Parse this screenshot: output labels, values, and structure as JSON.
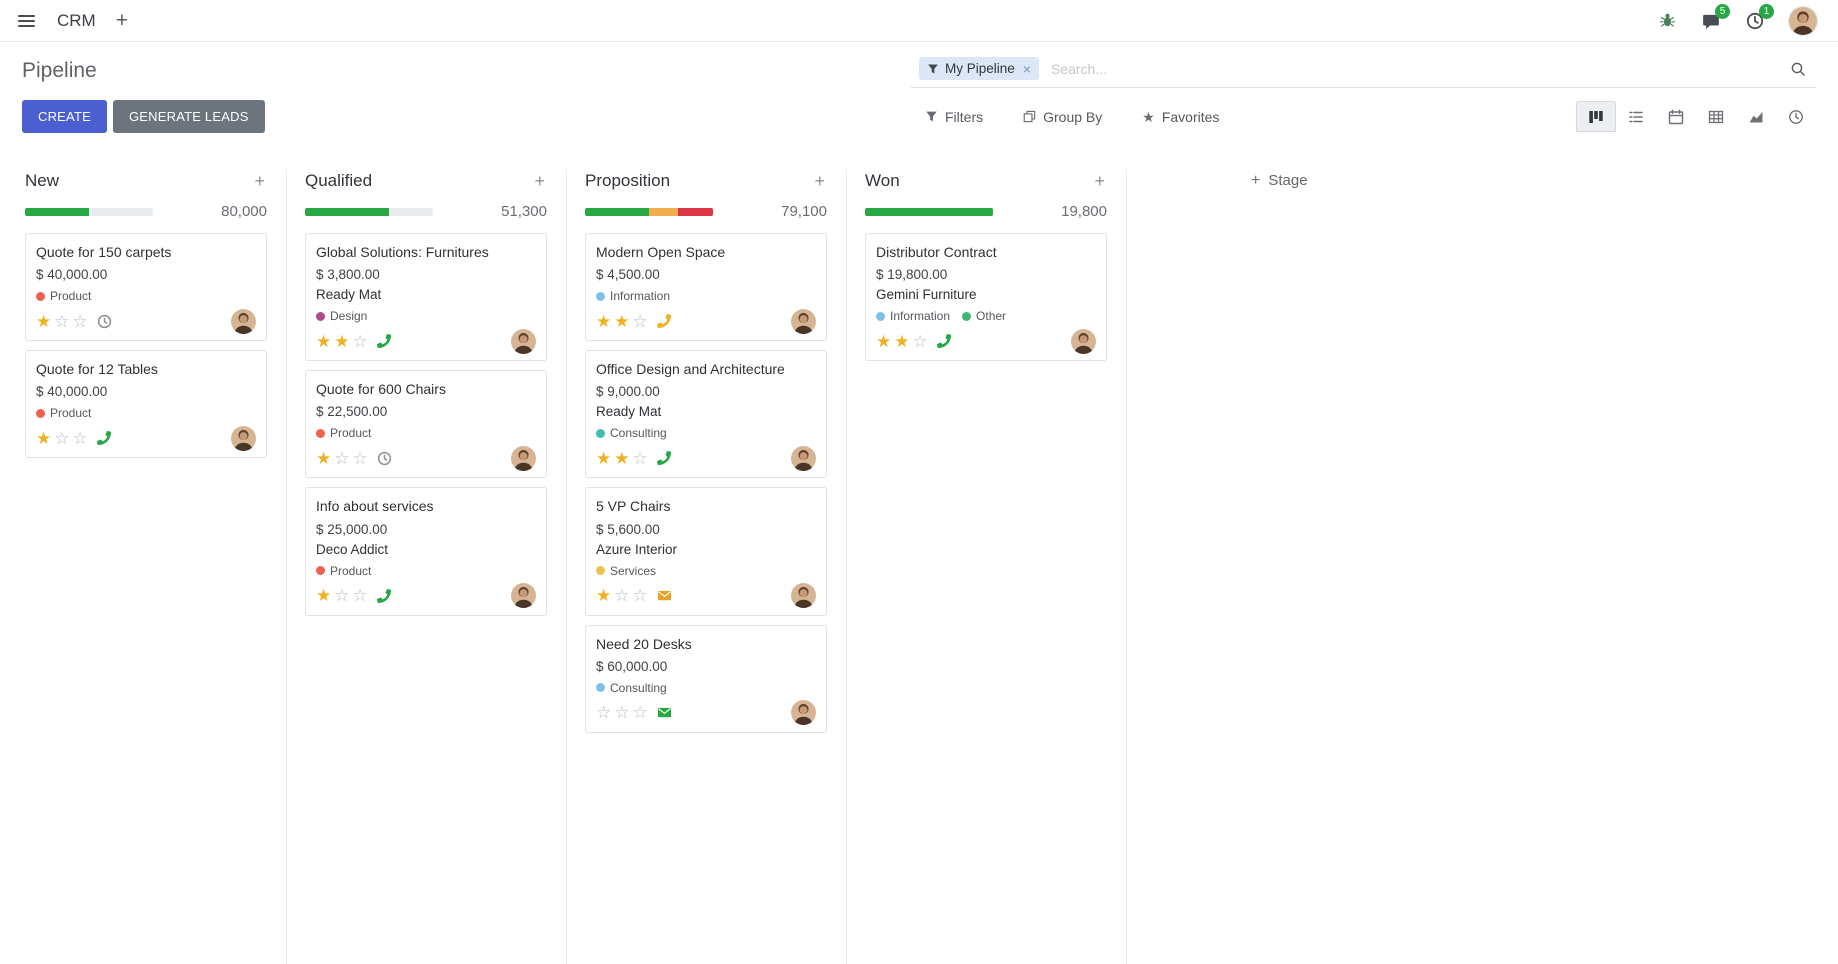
{
  "theme": {
    "accent": "#4b5fd0",
    "secondary": "#6c757d",
    "success": "#28a745"
  },
  "navbar": {
    "app_name": "CRM",
    "badges": {
      "messages": "5",
      "activities": "1"
    }
  },
  "control_panel": {
    "breadcrumb": "Pipeline",
    "create_label": "CREATE",
    "generate_leads_label": "GENERATE LEADS",
    "search": {
      "facet_label": "My Pipeline",
      "placeholder": "Search..."
    },
    "filter_buttons": {
      "filters": "Filters",
      "group_by": "Group By",
      "favorites": "Favorites"
    },
    "view_switcher": {
      "active": "kanban",
      "views": [
        "kanban",
        "list",
        "calendar",
        "pivot",
        "graph",
        "activity"
      ]
    }
  },
  "board": {
    "add_stage_label": "Stage",
    "columns": [
      {
        "name": "New",
        "total": "80,000",
        "progress": [
          {
            "color": "#28a745",
            "percent": 50
          }
        ],
        "cards": [
          {
            "title": "Quote for 150 carpets",
            "amount": "$ 40,000.00",
            "tags": [
              {
                "label": "Product",
                "color": "#f06050"
              }
            ],
            "stars": 1,
            "activity": {
              "icon": "clock",
              "color": "#8b9095"
            }
          },
          {
            "title": "Quote for 12 Tables",
            "amount": "$ 40,000.00",
            "tags": [
              {
                "label": "Product",
                "color": "#f06050"
              }
            ],
            "stars": 1,
            "activity": {
              "icon": "phone",
              "color": "#28a745"
            }
          }
        ]
      },
      {
        "name": "Qualified",
        "total": "51,300",
        "progress": [
          {
            "color": "#28a745",
            "percent": 66
          }
        ],
        "cards": [
          {
            "title": "Global Solutions: Furnitures",
            "amount": "$ 3,800.00",
            "partner": "Ready Mat",
            "tags": [
              {
                "label": "Design",
                "color": "#ae4a8e"
              }
            ],
            "stars": 2,
            "activity": {
              "icon": "phone",
              "color": "#28a745"
            }
          },
          {
            "title": "Quote for 600 Chairs",
            "amount": "$ 22,500.00",
            "tags": [
              {
                "label": "Product",
                "color": "#f06050"
              }
            ],
            "stars": 1,
            "activity": {
              "icon": "clock",
              "color": "#8b9095"
            }
          },
          {
            "title": "Info about services",
            "amount": "$ 25,000.00",
            "partner": "Deco Addict",
            "tags": [
              {
                "label": "Product",
                "color": "#f06050"
              }
            ],
            "stars": 1,
            "activity": {
              "icon": "phone",
              "color": "#28a745"
            }
          }
        ]
      },
      {
        "name": "Proposition",
        "total": "79,100",
        "progress": [
          {
            "color": "#28a745",
            "percent": 50
          },
          {
            "color": "#f0ad4e",
            "percent": 23
          },
          {
            "color": "#dc3545",
            "percent": 27
          }
        ],
        "cards": [
          {
            "title": "Modern Open Space",
            "amount": "$ 4,500.00",
            "tags": [
              {
                "label": "Information",
                "color": "#7ec1e8"
              }
            ],
            "stars": 2,
            "activity": {
              "icon": "phone",
              "color": "#eeb31b"
            }
          },
          {
            "title": "Office Design and Architecture",
            "amount": "$ 9,000.00",
            "partner": "Ready Mat",
            "tags": [
              {
                "label": "Consulting",
                "color": "#3cc0b0"
              }
            ],
            "stars": 2,
            "activity": {
              "icon": "phone",
              "color": "#28a745"
            }
          },
          {
            "title": "5 VP Chairs",
            "amount": "$ 5,600.00",
            "partner": "Azure Interior",
            "tags": [
              {
                "label": "Services",
                "color": "#ebc24b"
              }
            ],
            "stars": 1,
            "activity": {
              "icon": "envelope",
              "color": "#e2a429"
            }
          },
          {
            "title": "Need 20 Desks",
            "amount": "$ 60,000.00",
            "tags": [
              {
                "label": "Consulting",
                "color": "#7ec1e8"
              }
            ],
            "stars": 0,
            "activity": {
              "icon": "envelope",
              "color": "#28a745"
            }
          }
        ]
      },
      {
        "name": "Won",
        "total": "19,800",
        "progress": [
          {
            "color": "#28a745",
            "percent": 100
          }
        ],
        "cards": [
          {
            "title": "Distributor Contract",
            "amount": "$ 19,800.00",
            "partner": "Gemini Furniture",
            "tags": [
              {
                "label": "Information",
                "color": "#7ec1e8"
              },
              {
                "label": "Other",
                "color": "#3fb871"
              }
            ],
            "stars": 2,
            "activity": {
              "icon": "phone",
              "color": "#28a745"
            }
          }
        ]
      }
    ]
  }
}
